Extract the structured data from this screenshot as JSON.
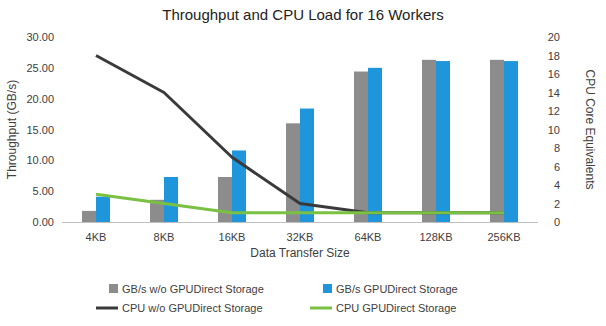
{
  "chart_data": {
    "type": "bar",
    "title": "Throughput and CPU Load for 16 Workers",
    "x_label": "Data Transfer Size",
    "y_label": "Throughput (GB/s)",
    "y2_label": "CPU Core Equivalents",
    "categories": [
      "4KB",
      "8KB",
      "16KB",
      "32KB",
      "64KB",
      "128KB",
      "256KB"
    ],
    "series": [
      {
        "name": "GB/s w/o GPUDirect Storage",
        "type": "bar",
        "color": "#8c8c8c",
        "values": [
          1.8,
          3.6,
          7.3,
          16.0,
          24.4,
          26.3,
          26.3
        ]
      },
      {
        "name": "GB/s GPUDirect Storage",
        "type": "bar",
        "color": "#1f96dc",
        "values": [
          4.1,
          7.3,
          11.6,
          18.4,
          25.0,
          26.1,
          26.1
        ]
      },
      {
        "name": "CPU w/o GPUDirect Storage",
        "type": "line",
        "axis": "y2",
        "color": "#3a3a3a",
        "values": [
          18,
          14,
          7,
          2,
          1,
          1,
          1
        ]
      },
      {
        "name": "CPU GPUDirect Storage",
        "type": "line",
        "axis": "y2",
        "color": "#7ac143",
        "values": [
          3,
          2,
          1,
          1,
          1,
          1,
          1
        ]
      }
    ],
    "ylim": [
      0,
      30
    ],
    "yticks": [
      {
        "value": 0,
        "label": "0.00"
      },
      {
        "value": 5,
        "label": "5.00"
      },
      {
        "value": 10,
        "label": "10.00"
      },
      {
        "value": 15,
        "label": "15.00"
      },
      {
        "value": 20,
        "label": "20.00"
      },
      {
        "value": 25,
        "label": "25.00"
      },
      {
        "value": 30,
        "label": "30.00"
      }
    ],
    "y2lim": [
      0,
      20
    ],
    "y2ticks": [
      0,
      2,
      4,
      6,
      8,
      10,
      12,
      14,
      16,
      18,
      20
    ],
    "grid": false,
    "legend": "bottom"
  }
}
